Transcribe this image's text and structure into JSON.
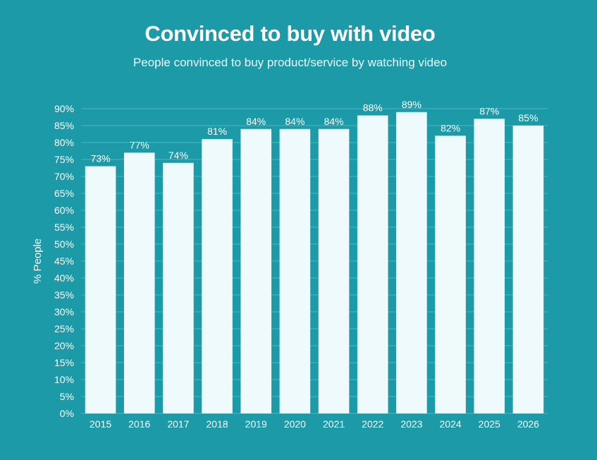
{
  "chart_data": {
    "type": "bar",
    "title": "Convinced to buy with video",
    "subtitle": "People convinced to buy product/service by watching video",
    "ylabel": "% People",
    "xlabel": "",
    "categories": [
      "2015",
      "2016",
      "2017",
      "2018",
      "2019",
      "2020",
      "2021",
      "2022",
      "2023",
      "2024",
      "2025",
      "2026"
    ],
    "values": [
      73,
      77,
      74,
      81,
      84,
      84,
      84,
      88,
      89,
      82,
      87,
      85
    ],
    "value_labels": [
      "73%",
      "77%",
      "74%",
      "81%",
      "84%",
      "84%",
      "84%",
      "88%",
      "89%",
      "82%",
      "87%",
      "85%"
    ],
    "ylim": [
      0,
      90
    ],
    "yticks": [
      0,
      5,
      10,
      15,
      20,
      25,
      30,
      35,
      40,
      45,
      50,
      55,
      60,
      65,
      70,
      75,
      80,
      85,
      90
    ],
    "ytick_labels": [
      "0%",
      "5%",
      "10%",
      "15%",
      "20%",
      "25%",
      "30%",
      "35%",
      "40%",
      "45%",
      "50%",
      "55%",
      "60%",
      "65%",
      "70%",
      "75%",
      "80%",
      "85%",
      "90%"
    ],
    "grid": true,
    "legend": "none",
    "colors": {
      "background": "#1c9aa8",
      "bar": "#eefafb",
      "grid": "#4fb7c2",
      "text": "#ffffff"
    }
  }
}
